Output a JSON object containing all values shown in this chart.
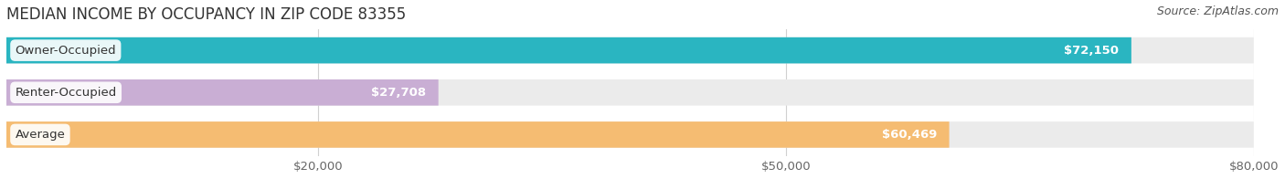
{
  "title": "MEDIAN INCOME BY OCCUPANCY IN ZIP CODE 83355",
  "source": "Source: ZipAtlas.com",
  "categories": [
    "Owner-Occupied",
    "Renter-Occupied",
    "Average"
  ],
  "values": [
    72150,
    27708,
    60469
  ],
  "bar_colors": [
    "#2ab5c1",
    "#c9aed4",
    "#f5bc72"
  ],
  "value_labels": [
    "$72,150",
    "$27,708",
    "$60,469"
  ],
  "xlim": [
    0,
    80000
  ],
  "xticks": [
    20000,
    50000,
    80000
  ],
  "xtick_labels": [
    "$20,000",
    "$50,000",
    "$80,000"
  ],
  "title_fontsize": 12,
  "source_fontsize": 9,
  "label_fontsize": 9.5,
  "bar_height": 0.62,
  "background_color": "#ffffff",
  "bar_bg_color": "#ebebeb",
  "title_color": "#333333",
  "source_color": "#555555"
}
